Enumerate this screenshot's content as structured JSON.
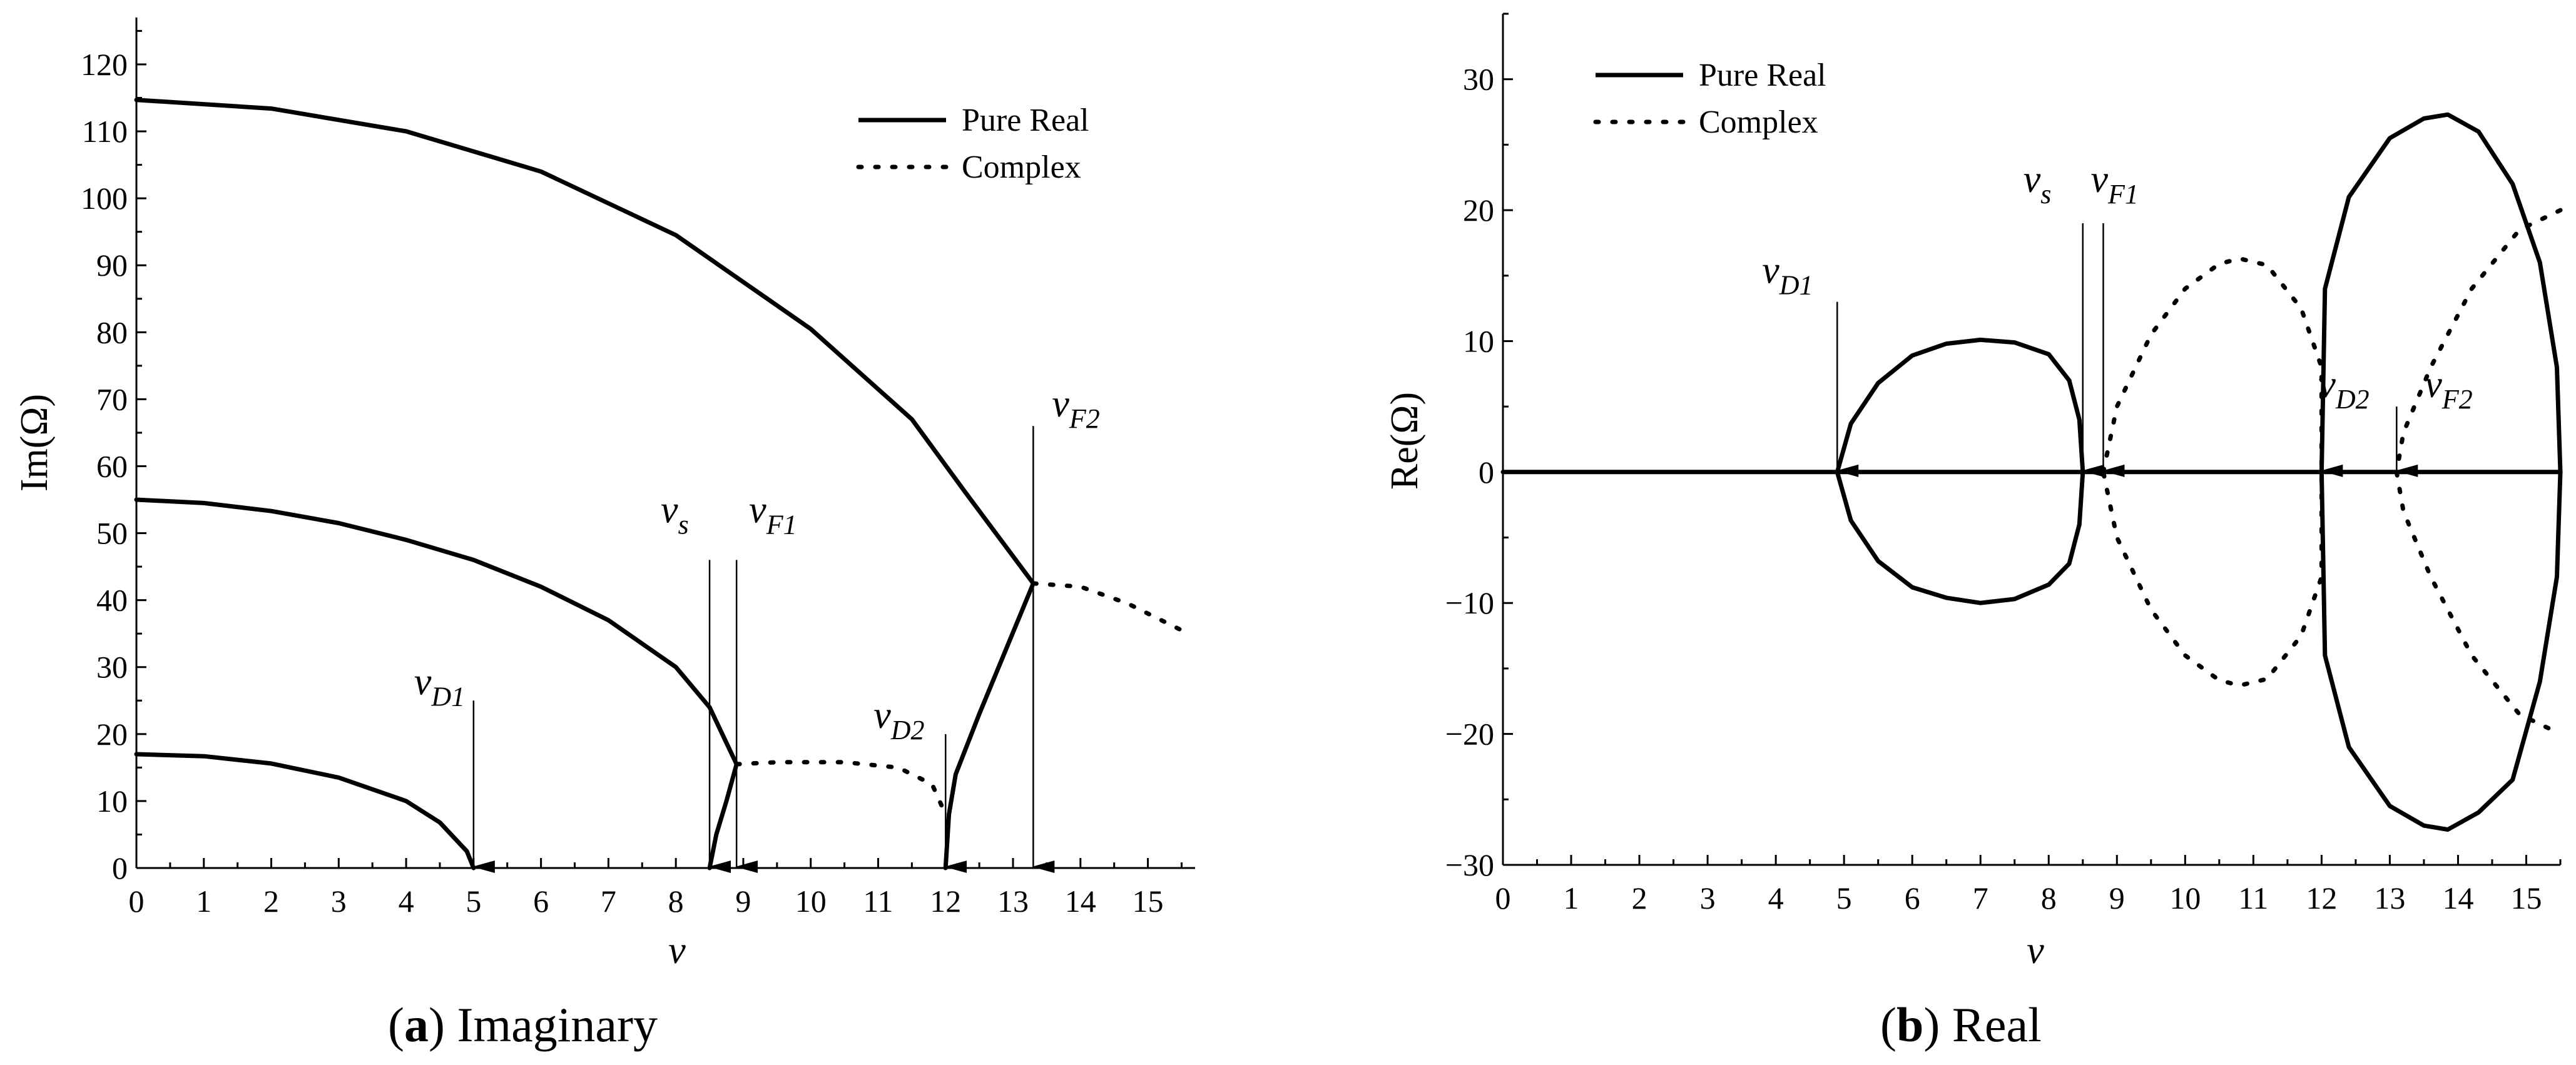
{
  "figure": {
    "panels": [
      {
        "caption_letter": "a",
        "caption_text": " Imaginary"
      },
      {
        "caption_letter": "b",
        "caption_text": " Real"
      }
    ]
  },
  "chart_data": [
    {
      "type": "line",
      "title": "",
      "xlabel": "v",
      "ylabel": "Im(Ω)",
      "xlim": [
        0,
        15.7
      ],
      "ylim": [
        0,
        127
      ],
      "xticks": [
        0,
        1,
        2,
        3,
        4,
        5,
        6,
        7,
        8,
        9,
        10,
        11,
        12,
        13,
        14,
        15
      ],
      "yticks": [
        0,
        10,
        20,
        30,
        40,
        50,
        60,
        70,
        80,
        90,
        100,
        110,
        120
      ],
      "legend": [
        {
          "label": "Pure Real",
          "style": "solid"
        },
        {
          "label": "Complex",
          "style": "dotted"
        }
      ],
      "legend_position": "top-right",
      "series": [
        {
          "name": "Pure Real",
          "style": "solid",
          "points": [
            [
              0,
              114.7
            ],
            [
              2,
              113.4
            ],
            [
              4,
              110
            ],
            [
              6,
              104
            ],
            [
              8,
              94.5
            ],
            [
              10,
              80.5
            ],
            [
              11.5,
              67
            ],
            [
              12.3,
              56
            ],
            [
              13.3,
              42.5
            ]
          ]
        },
        {
          "name": "Pure Real",
          "style": "solid",
          "points": [
            [
              0,
              55
            ],
            [
              1,
              54.5
            ],
            [
              2,
              53.3
            ],
            [
              3,
              51.5
            ],
            [
              4,
              49
            ],
            [
              5,
              46
            ],
            [
              6,
              42
            ],
            [
              7,
              37
            ],
            [
              8,
              30
            ],
            [
              8.5,
              24
            ],
            [
              8.9,
              15.5
            ]
          ]
        },
        {
          "name": "Pure Real",
          "style": "solid",
          "points": [
            [
              0,
              17
            ],
            [
              1,
              16.7
            ],
            [
              2,
              15.6
            ],
            [
              3,
              13.5
            ],
            [
              4,
              10
            ],
            [
              4.5,
              6.8
            ],
            [
              4.9,
              2.5
            ],
            [
              5,
              0
            ]
          ]
        },
        {
          "name": "Pure Real",
          "style": "solid",
          "points": [
            [
              8.5,
              0
            ],
            [
              8.6,
              5
            ],
            [
              8.75,
              10
            ],
            [
              8.9,
              15.5
            ]
          ]
        },
        {
          "name": "Pure Real",
          "style": "solid",
          "points": [
            [
              12,
              0
            ],
            [
              12.05,
              8
            ],
            [
              12.15,
              14
            ],
            [
              12.5,
              23
            ],
            [
              13.3,
              42.5
            ]
          ]
        },
        {
          "name": "Complex",
          "style": "dotted",
          "points": [
            [
              8.9,
              15.5
            ],
            [
              9.5,
              15.8
            ],
            [
              10.5,
              15.8
            ],
            [
              11.3,
              15
            ],
            [
              11.8,
              12.5
            ],
            [
              12,
              8
            ]
          ]
        },
        {
          "name": "Complex",
          "style": "dotted",
          "points": [
            [
              13.3,
              42.5
            ],
            [
              14,
              42
            ],
            [
              14.7,
              39.5
            ],
            [
              15.5,
              35.5
            ]
          ]
        }
      ],
      "annotations": [
        {
          "label": "v",
          "sub": "D1",
          "x": 5,
          "arrow_top": 25
        },
        {
          "label": "v",
          "sub": "s",
          "x": 8.5,
          "arrow_top": 46
        },
        {
          "label": "v",
          "sub": "F1",
          "x": 8.9,
          "arrow_top": 46
        },
        {
          "label": "v",
          "sub": "D2",
          "x": 12,
          "arrow_top": 20
        },
        {
          "label": "v",
          "sub": "F2",
          "x": 13.3,
          "arrow_top": 66
        }
      ]
    },
    {
      "type": "line",
      "title": "",
      "xlabel": "v",
      "ylabel": "Re(Ω)",
      "xlim": [
        0,
        15.5
      ],
      "ylim": [
        -30,
        35
      ],
      "xticks": [
        0,
        1,
        2,
        3,
        4,
        5,
        6,
        7,
        8,
        9,
        10,
        11,
        12,
        13,
        14,
        15
      ],
      "yticks": [
        -30,
        -20,
        -10,
        0,
        10,
        20,
        30
      ],
      "legend": [
        {
          "label": "Pure Real",
          "style": "solid"
        },
        {
          "label": "Complex",
          "style": "dotted"
        }
      ],
      "legend_position": "top-left",
      "series": [
        {
          "name": "Pure Real",
          "style": "solid",
          "points": [
            [
              0,
              0
            ],
            [
              15.5,
              0
            ]
          ]
        },
        {
          "name": "Pure Real",
          "style": "solid",
          "closed": true,
          "points": [
            [
              4.9,
              0
            ],
            [
              5.1,
              3.7
            ],
            [
              5.5,
              6.8
            ],
            [
              6,
              8.9
            ],
            [
              6.5,
              9.8
            ],
            [
              7,
              10.1
            ],
            [
              7.5,
              9.9
            ],
            [
              8,
              9
            ],
            [
              8.3,
              7
            ],
            [
              8.45,
              4
            ],
            [
              8.5,
              0
            ],
            [
              8.45,
              -4
            ],
            [
              8.3,
              -7
            ],
            [
              8,
              -8.6
            ],
            [
              7.5,
              -9.7
            ],
            [
              7,
              -10
            ],
            [
              6.5,
              -9.6
            ],
            [
              6,
              -8.8
            ],
            [
              5.5,
              -6.8
            ],
            [
              5.1,
              -3.7
            ]
          ]
        },
        {
          "name": "Pure Real",
          "style": "solid",
          "closed": true,
          "points": [
            [
              12,
              0
            ],
            [
              12.05,
              14
            ],
            [
              12.4,
              21
            ],
            [
              13,
              25.5
            ],
            [
              13.5,
              27
            ],
            [
              13.85,
              27.3
            ],
            [
              14.3,
              26
            ],
            [
              14.8,
              22
            ],
            [
              15.2,
              16
            ],
            [
              15.45,
              8
            ],
            [
              15.5,
              0
            ],
            [
              15.45,
              -8
            ],
            [
              15.2,
              -16
            ],
            [
              14.8,
              -23.5
            ],
            [
              14.3,
              -26
            ],
            [
              13.85,
              -27.3
            ],
            [
              13.5,
              -27
            ],
            [
              13,
              -25.5
            ],
            [
              12.4,
              -21
            ],
            [
              12.05,
              -14
            ]
          ]
        },
        {
          "name": "Complex",
          "style": "dotted",
          "closed": true,
          "points": [
            [
              8.8,
              0
            ],
            [
              9,
              5
            ],
            [
              9.5,
              10.5
            ],
            [
              10,
              14
            ],
            [
              10.5,
              15.9
            ],
            [
              10.8,
              16.3
            ],
            [
              11.2,
              15.8
            ],
            [
              11.7,
              12.5
            ],
            [
              12,
              8
            ],
            [
              12,
              -8
            ],
            [
              11.7,
              -12.5
            ],
            [
              11.2,
              -15.8
            ],
            [
              10.8,
              -16.3
            ],
            [
              10.5,
              -15.9
            ],
            [
              10,
              -14
            ],
            [
              9.5,
              -10.5
            ],
            [
              9,
              -5
            ]
          ]
        },
        {
          "name": "Complex",
          "style": "dotted",
          "points": [
            [
              15.5,
              20
            ],
            [
              14.9,
              18.5
            ],
            [
              14.2,
              14
            ],
            [
              13.6,
              8
            ],
            [
              13.2,
              3
            ],
            [
              13.1,
              0
            ],
            [
              13.2,
              -3
            ],
            [
              13.6,
              -8
            ],
            [
              14.2,
              -14
            ],
            [
              14.9,
              -18.5
            ],
            [
              15.5,
              -20
            ]
          ]
        }
      ],
      "annotations": [
        {
          "label": "v",
          "sub": "D1",
          "x": 4.9,
          "arrow_top": 13
        },
        {
          "label": "v",
          "sub": "s",
          "x": 8.5,
          "arrow_top": 19
        },
        {
          "label": "v",
          "sub": "F1",
          "x": 8.8,
          "arrow_top": 19
        },
        {
          "label": "v",
          "sub": "D2",
          "x": 12,
          "arrow_top": 5
        },
        {
          "label": "v",
          "sub": "F2",
          "x": 13.1,
          "arrow_top": 5
        }
      ]
    }
  ]
}
